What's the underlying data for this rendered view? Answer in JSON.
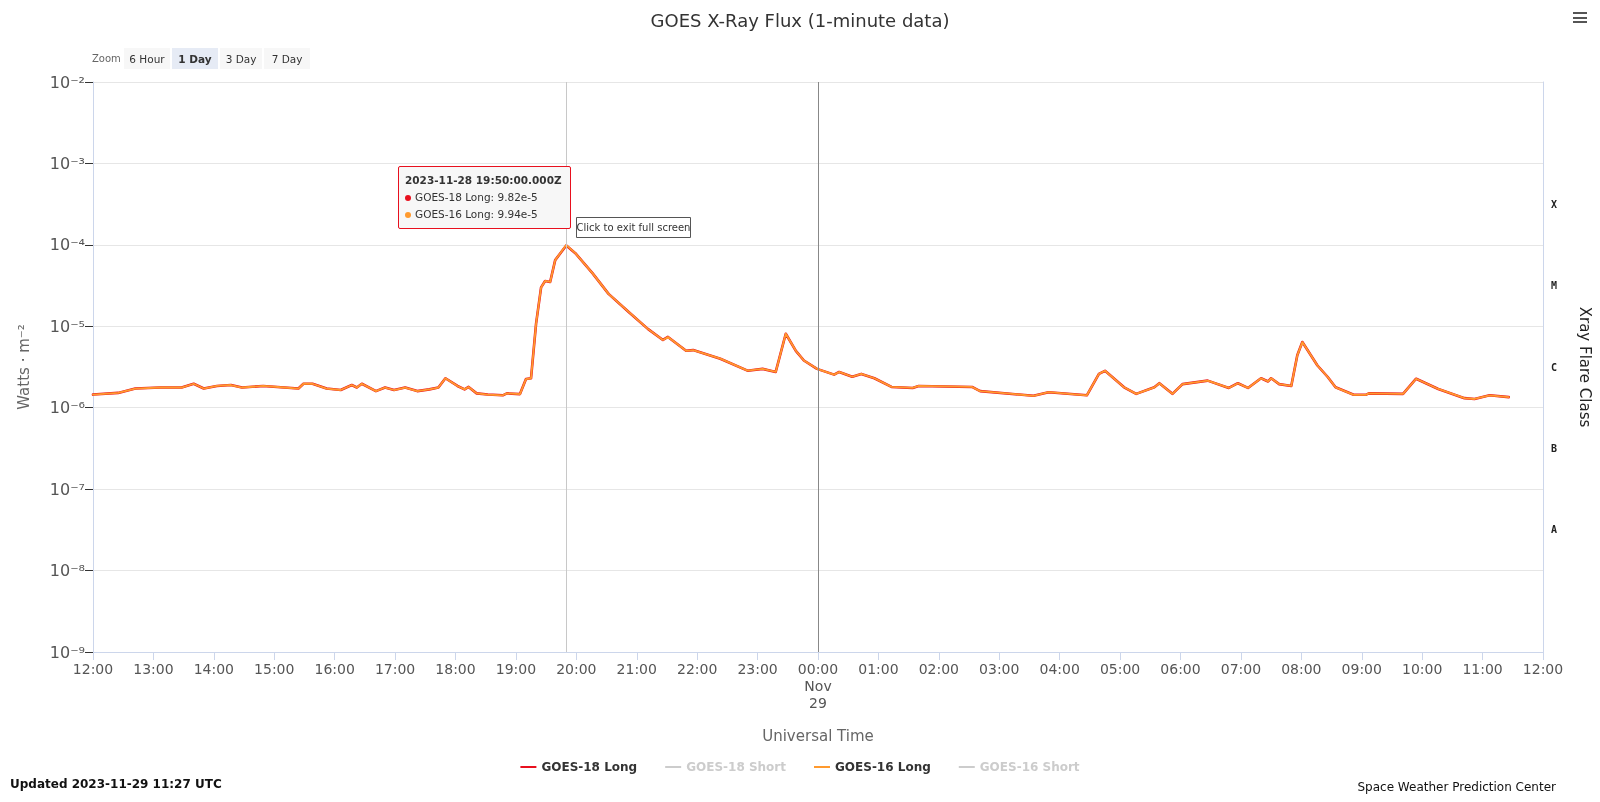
{
  "chart_data": {
    "type": "line",
    "title": "GOES X-Ray Flux (1-minute data)",
    "xlabel": "Universal Time",
    "ylabel": "Watts · m⁻²",
    "y2label": "Xray Flare Class",
    "x": [
      "2023-11-28T12:00",
      "2023-11-28T12:25",
      "2023-11-28T12:42",
      "2023-11-28T13:07",
      "2023-11-28T13:28",
      "2023-11-28T13:40",
      "2023-11-28T13:50",
      "2023-11-28T14:03",
      "2023-11-28T14:17",
      "2023-11-28T14:28",
      "2023-11-28T14:49",
      "2023-11-28T15:10",
      "2023-11-28T15:24",
      "2023-11-28T15:29",
      "2023-11-28T15:38",
      "2023-11-28T15:52",
      "2023-11-28T16:06",
      "2023-11-28T16:17",
      "2023-11-28T16:22",
      "2023-11-28T16:27",
      "2023-11-28T16:41",
      "2023-11-28T16:50",
      "2023-11-28T16:59",
      "2023-11-28T17:10",
      "2023-11-28T17:22",
      "2023-11-28T17:34",
      "2023-11-28T17:43",
      "2023-11-28T17:50",
      "2023-11-28T18:02",
      "2023-11-28T18:09",
      "2023-11-28T18:13",
      "2023-11-28T18:21",
      "2023-11-28T18:32",
      "2023-11-28T18:47",
      "2023-11-28T18:51",
      "2023-11-28T19:04",
      "2023-11-28T19:10",
      "2023-11-28T19:15",
      "2023-11-28T19:20",
      "2023-11-28T19:25",
      "2023-11-28T19:29",
      "2023-11-28T19:34",
      "2023-11-28T19:39",
      "2023-11-28T19:50",
      "2023-11-28T19:59",
      "2023-11-28T20:16",
      "2023-11-28T20:32",
      "2023-11-28T20:52",
      "2023-11-28T21:11",
      "2023-11-28T21:26",
      "2023-11-28T21:31",
      "2023-11-28T21:49",
      "2023-11-28T21:56",
      "2023-11-28T22:23",
      "2023-11-28T22:50",
      "2023-11-28T23:05",
      "2023-11-28T23:18",
      "2023-11-28T23:28",
      "2023-11-28T23:38",
      "2023-11-28T23:46",
      "2023-11-28T23:59",
      "2023-11-29T00:16",
      "2023-11-29T00:21",
      "2023-11-29T00:34",
      "2023-11-29T00:43",
      "2023-11-29T00:56",
      "2023-11-29T01:13",
      "2023-11-29T01:34",
      "2023-11-29T01:40",
      "2023-11-29T02:33",
      "2023-11-29T02:41",
      "2023-11-29T03:34",
      "2023-11-29T03:49",
      "2023-11-29T04:27",
      "2023-11-29T04:39",
      "2023-11-29T04:45",
      "2023-11-29T05:04",
      "2023-11-29T05:16",
      "2023-11-29T05:34",
      "2023-11-29T05:39",
      "2023-11-29T05:52",
      "2023-11-29T06:02",
      "2023-11-29T06:27",
      "2023-11-29T06:48",
      "2023-11-29T06:57",
      "2023-11-29T07:07",
      "2023-11-29T07:20",
      "2023-11-29T07:27",
      "2023-11-29T07:30",
      "2023-11-29T07:38",
      "2023-11-29T07:50",
      "2023-11-29T07:56",
      "2023-11-29T08:01",
      "2023-11-29T08:16",
      "2023-11-29T08:26",
      "2023-11-29T08:34",
      "2023-11-29T08:52",
      "2023-11-29T09:04",
      "2023-11-29T09:07",
      "2023-11-29T09:41",
      "2023-11-29T09:54",
      "2023-11-29T10:16",
      "2023-11-29T10:42",
      "2023-11-29T10:52",
      "2023-11-29T11:07",
      "2023-11-29T11:26"
    ],
    "series": [
      {
        "name": "GOES-18 Long",
        "color": "#e8101e",
        "values": [
          1.45e-06,
          1.52e-06,
          1.72e-06,
          1.77e-06,
          1.77e-06,
          1.97e-06,
          1.72e-06,
          1.85e-06,
          1.9e-06,
          1.77e-06,
          1.85e-06,
          1.77e-06,
          1.72e-06,
          1.97e-06,
          1.97e-06,
          1.72e-06,
          1.65e-06,
          1.9e-06,
          1.77e-06,
          1.97e-06,
          1.6e-06,
          1.77e-06,
          1.65e-06,
          1.77e-06,
          1.6e-06,
          1.68e-06,
          1.77e-06,
          2.3e-06,
          1.85e-06,
          1.68e-06,
          1.8e-06,
          1.5e-06,
          1.45e-06,
          1.42e-06,
          1.5e-06,
          1.47e-06,
          2.25e-06,
          2.3e-06,
          1.07e-05,
          3e-05,
          3.6e-05,
          3.5e-05,
          6.5e-05,
          9.82e-05,
          7.9e-05,
          4.5e-05,
          2.5e-05,
          1.5e-05,
          9.3e-06,
          6.8e-06,
          7.4e-06,
          5e-06,
          5.1e-06,
          4e-06,
          2.85e-06,
          3e-06,
          2.75e-06,
          8.1e-06,
          5e-06,
          3.8e-06,
          3e-06,
          2.55e-06,
          2.75e-06,
          2.4e-06,
          2.6e-06,
          2.3e-06,
          1.8e-06,
          1.75e-06,
          1.85e-06,
          1.8e-06,
          1.6e-06,
          1.4e-06,
          1.55e-06,
          1.42e-06,
          2.6e-06,
          2.84e-06,
          1.78e-06,
          1.48e-06,
          1.78e-06,
          2e-06,
          1.48e-06,
          1.95e-06,
          2.15e-06,
          1.75e-06,
          2e-06,
          1.75e-06,
          2.3e-06,
          2.1e-06,
          2.3e-06,
          1.95e-06,
          1.85e-06,
          4.4e-06,
          6.4e-06,
          3.3e-06,
          2.4e-06,
          1.78e-06,
          1.44e-06,
          1.44e-06,
          1.5e-06,
          1.48e-06,
          2.27e-06,
          1.7e-06,
          1.31e-06,
          1.28e-06,
          1.42e-06,
          1.35e-06
        ]
      },
      {
        "name": "GOES-18 Short",
        "color": "#cccccc",
        "values": [
          null,
          null,
          null,
          null,
          null,
          null,
          null,
          null,
          null,
          null,
          null,
          null,
          null,
          null,
          null,
          null,
          null,
          null,
          null,
          null,
          null,
          null,
          null,
          null,
          null,
          null,
          null,
          null,
          null,
          null,
          null,
          null,
          null,
          null,
          null,
          null,
          null,
          null,
          null,
          null,
          null,
          null,
          null,
          null,
          null,
          null,
          null,
          null,
          null,
          null,
          null,
          null,
          null,
          null,
          null,
          null,
          null,
          null,
          null,
          null,
          null,
          null,
          null,
          null,
          null,
          null,
          null,
          null,
          null,
          null,
          null,
          null,
          null,
          null,
          null,
          null,
          null,
          null,
          null,
          null,
          null,
          null,
          null,
          null,
          null,
          null,
          null,
          null,
          null,
          null,
          null,
          null,
          null,
          null,
          null,
          null,
          null,
          null,
          null,
          null,
          null,
          null,
          null,
          null,
          null,
          null
        ]
      },
      {
        "name": "GOES-16 Long",
        "color": "#ff9a2e",
        "values": [
          1.45e-06,
          1.52e-06,
          1.72e-06,
          1.77e-06,
          1.77e-06,
          1.97e-06,
          1.72e-06,
          1.85e-06,
          1.9e-06,
          1.77e-06,
          1.85e-06,
          1.77e-06,
          1.72e-06,
          1.97e-06,
          1.97e-06,
          1.72e-06,
          1.65e-06,
          1.9e-06,
          1.77e-06,
          1.97e-06,
          1.6e-06,
          1.77e-06,
          1.65e-06,
          1.77e-06,
          1.6e-06,
          1.68e-06,
          1.77e-06,
          2.3e-06,
          1.85e-06,
          1.68e-06,
          1.8e-06,
          1.5e-06,
          1.45e-06,
          1.42e-06,
          1.5e-06,
          1.47e-06,
          2.25e-06,
          2.3e-06,
          1.07e-05,
          3e-05,
          3.6e-05,
          3.5e-05,
          6.5e-05,
          9.94e-05,
          7.9e-05,
          4.5e-05,
          2.5e-05,
          1.5e-05,
          9.3e-06,
          6.8e-06,
          7.4e-06,
          5e-06,
          5.1e-06,
          4e-06,
          2.85e-06,
          3e-06,
          2.75e-06,
          8.1e-06,
          5e-06,
          3.8e-06,
          3e-06,
          2.55e-06,
          2.75e-06,
          2.4e-06,
          2.6e-06,
          2.3e-06,
          1.8e-06,
          1.75e-06,
          1.85e-06,
          1.8e-06,
          1.6e-06,
          1.4e-06,
          1.55e-06,
          1.42e-06,
          2.6e-06,
          2.84e-06,
          1.78e-06,
          1.48e-06,
          1.78e-06,
          2e-06,
          1.48e-06,
          1.95e-06,
          2.15e-06,
          1.75e-06,
          2e-06,
          1.75e-06,
          2.3e-06,
          2.1e-06,
          2.3e-06,
          1.95e-06,
          1.85e-06,
          4.4e-06,
          6.4e-06,
          3.3e-06,
          2.4e-06,
          1.78e-06,
          1.44e-06,
          1.44e-06,
          1.5e-06,
          1.48e-06,
          2.27e-06,
          1.7e-06,
          1.31e-06,
          1.28e-06,
          1.42e-06,
          1.35e-06
        ]
      },
      {
        "name": "GOES-16 Short",
        "color": "#cccccc",
        "values": [
          null,
          null,
          null,
          null,
          null,
          null,
          null,
          null,
          null,
          null,
          null,
          null,
          null,
          null,
          null,
          null,
          null,
          null,
          null,
          null,
          null,
          null,
          null,
          null,
          null,
          null,
          null,
          null,
          null,
          null,
          null,
          null,
          null,
          null,
          null,
          null,
          null,
          null,
          null,
          null,
          null,
          null,
          null,
          null,
          null,
          null,
          null,
          null,
          null,
          null,
          null,
          null,
          null,
          null,
          null,
          null,
          null,
          null,
          null,
          null,
          null,
          null,
          null,
          null,
          null,
          null,
          null,
          null,
          null,
          null,
          null,
          null,
          null,
          null,
          null,
          null,
          null,
          null,
          null,
          null,
          null,
          null,
          null,
          null,
          null,
          null,
          null,
          null,
          null,
          null,
          null,
          null,
          null,
          null,
          null,
          null,
          null,
          null,
          null,
          null,
          null,
          null,
          null,
          null,
          null,
          null
        ]
      }
    ],
    "xlim": [
      "2023-11-28T12:00",
      "2023-11-29T12:00"
    ],
    "xticks": [
      {
        "value": "2023-11-28T12:00",
        "label": "12:00"
      },
      {
        "value": "2023-11-28T13:00",
        "label": "13:00"
      },
      {
        "value": "2023-11-28T14:00",
        "label": "14:00"
      },
      {
        "value": "2023-11-28T15:00",
        "label": "15:00"
      },
      {
        "value": "2023-11-28T16:00",
        "label": "16:00"
      },
      {
        "value": "2023-11-28T17:00",
        "label": "17:00"
      },
      {
        "value": "2023-11-28T18:00",
        "label": "18:00"
      },
      {
        "value": "2023-11-28T19:00",
        "label": "19:00"
      },
      {
        "value": "2023-11-28T20:00",
        "label": "20:00"
      },
      {
        "value": "2023-11-28T21:00",
        "label": "21:00"
      },
      {
        "value": "2023-11-28T22:00",
        "label": "22:00"
      },
      {
        "value": "2023-11-28T23:00",
        "label": "23:00"
      },
      {
        "value": "2023-11-29T00:00",
        "label": "00:00\nNov\n29"
      },
      {
        "value": "2023-11-29T01:00",
        "label": "01:00"
      },
      {
        "value": "2023-11-29T02:00",
        "label": "02:00"
      },
      {
        "value": "2023-11-29T03:00",
        "label": "03:00"
      },
      {
        "value": "2023-11-29T04:00",
        "label": "04:00"
      },
      {
        "value": "2023-11-29T05:00",
        "label": "05:00"
      },
      {
        "value": "2023-11-29T06:00",
        "label": "06:00"
      },
      {
        "value": "2023-11-29T07:00",
        "label": "07:00"
      },
      {
        "value": "2023-11-29T08:00",
        "label": "08:00"
      },
      {
        "value": "2023-11-29T09:00",
        "label": "09:00"
      },
      {
        "value": "2023-11-29T10:00",
        "label": "10:00"
      },
      {
        "value": "2023-11-29T11:00",
        "label": "11:00"
      },
      {
        "value": "2023-11-29T12:00",
        "label": "12:00"
      }
    ],
    "ylim": [
      1e-09,
      0.01
    ],
    "yticks": [
      {
        "value": 1e-09,
        "label": "10⁻⁹"
      },
      {
        "value": 1e-08,
        "label": "10⁻⁸"
      },
      {
        "value": 1e-07,
        "label": "10⁻⁷"
      },
      {
        "value": 1e-06,
        "label": "10⁻⁶"
      },
      {
        "value": 1e-05,
        "label": "10⁻⁵"
      },
      {
        "value": 0.0001,
        "label": "10⁻⁴"
      },
      {
        "value": 0.001,
        "label": "10⁻³"
      },
      {
        "value": 0.01,
        "label": "10⁻²"
      }
    ],
    "y2_categories": [
      null,
      "X",
      "M",
      "C",
      "B",
      "A",
      null
    ],
    "log": true,
    "grid": "y",
    "legend": "bottom",
    "marker": "none",
    "ref_lines": [
      {
        "axis": "x",
        "value": "2023-11-28T19:50",
        "color": "#c8c8c8"
      },
      {
        "axis": "x",
        "value": "2023-11-29T00:00",
        "color": "#888888"
      }
    ],
    "annotations": [
      "Zoom",
      "6 Hour",
      "1 Day",
      "3 Day",
      "7 Day",
      "2023-11-28 19:50:00.000Z\nGOES-18 Long: 9.82e-5\nGOES-16 Long: 9.94e-5",
      "Click to exit full screen",
      "Updated 2023-11-29 11:27 UTC",
      "Space Weather Prediction Center"
    ]
  }
}
